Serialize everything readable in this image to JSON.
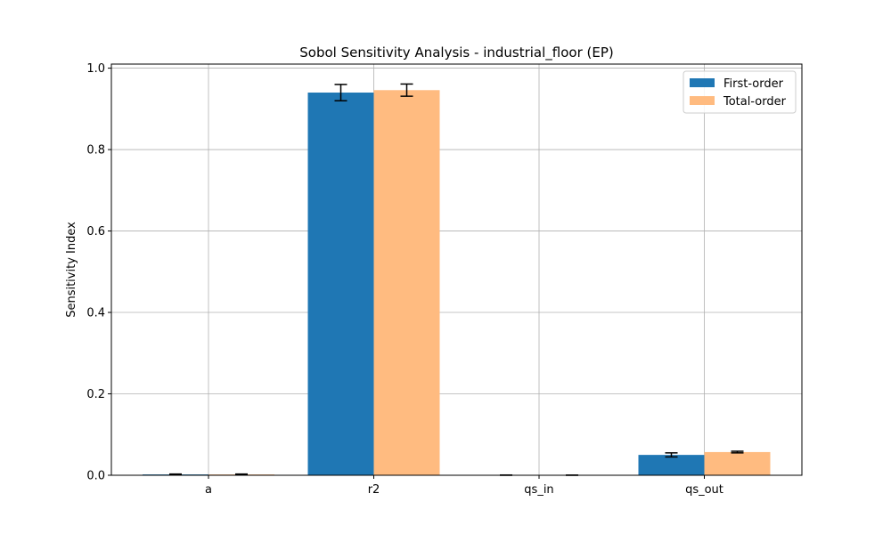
{
  "chart_data": {
    "type": "bar",
    "title": "Sobol Sensitivity Analysis - industrial_floor (EP)",
    "xlabel": "",
    "ylabel": "Sensitivity Index",
    "categories": [
      "a",
      "r2",
      "qs_in",
      "qs_out"
    ],
    "ylim": [
      0,
      1.01
    ],
    "yticks": [
      "0.0",
      "0.2",
      "0.4",
      "0.6",
      "0.8",
      "1.0"
    ],
    "grid": true,
    "legend_position": "top-right",
    "series": [
      {
        "name": "First-order",
        "color": "#1f77b4",
        "values": [
          0.002,
          0.94,
          0.0,
          0.05
        ],
        "errors": [
          0.001,
          0.02,
          0.0006,
          0.005
        ]
      },
      {
        "name": "Total-order",
        "color": "#ffbb80",
        "values": [
          0.002,
          0.946,
          0.0,
          0.057
        ],
        "errors": [
          0.001,
          0.015,
          0.0004,
          0.002
        ]
      }
    ]
  }
}
